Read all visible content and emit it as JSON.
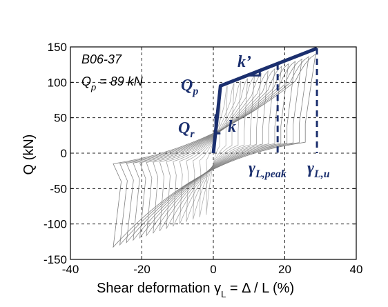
{
  "chart_data": {
    "type": "line",
    "title": "",
    "xlabel": "Shear deformation",
    "xlabel_symbol": "γ",
    "xlabel_subscript": "L",
    "xlabel_tail": " = Δ / L (%)",
    "ylabel": "Q (kN)",
    "xlim": [
      -40,
      40
    ],
    "ylim": [
      -150,
      150
    ],
    "xticks": [
      -40,
      -20,
      0,
      20,
      40
    ],
    "yticks": [
      150,
      100,
      50,
      0,
      -50,
      -100,
      -150
    ],
    "xtick_labels": [
      "-40",
      "-20",
      "0",
      "20",
      "40"
    ],
    "ytick_labels": [
      "150",
      "100",
      "50",
      "0",
      "-50",
      "-100",
      "-150"
    ],
    "grid": true,
    "specimen": "B06-37",
    "qp_prefix": "Q",
    "qp_sub": "p",
    "qp_suffix": " = 89 kN",
    "annotations": {
      "qp_main": "Q",
      "qp_sub": "p",
      "qr_main": "Q",
      "qr_sub": "r",
      "k": "k",
      "k_prime": "k’",
      "gamma_peak_main": "γ",
      "gamma_peak_sub": "L,peak",
      "gamma_u_main": "γ",
      "gamma_u_sub": "L,u"
    },
    "series": [
      {
        "x": [
          0,
          2,
          29
        ],
        "y": [
          0,
          95,
          148
        ]
      }
    ],
    "markers": {
      "gamma_peak_x": 18,
      "gamma_u_x": 29
    },
    "colors": {
      "model": "#1b2f6e",
      "hysteresis": "#7a7a7a"
    }
  }
}
